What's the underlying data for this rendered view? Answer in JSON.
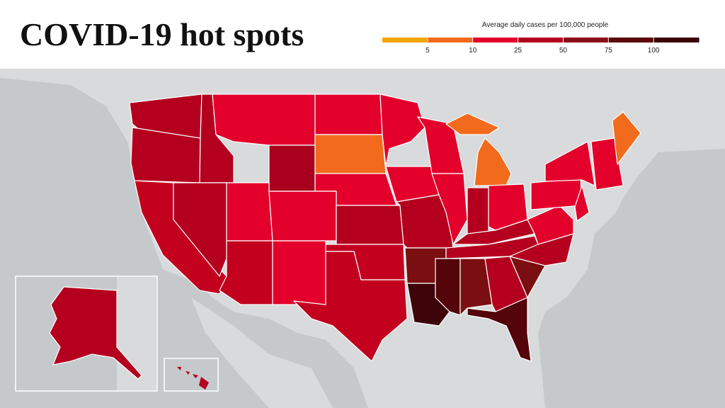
{
  "header": {
    "title": "COVID-19 hot spots"
  },
  "legend": {
    "title": "Average daily cases per 100,000 people",
    "ticks": [
      5,
      10,
      25,
      50,
      75,
      100
    ],
    "colors": [
      "#f5a500",
      "#f26b1d",
      "#e3002b",
      "#b4001e",
      "#8a0c16",
      "#5c0709",
      "#3a0407"
    ]
  }
}
